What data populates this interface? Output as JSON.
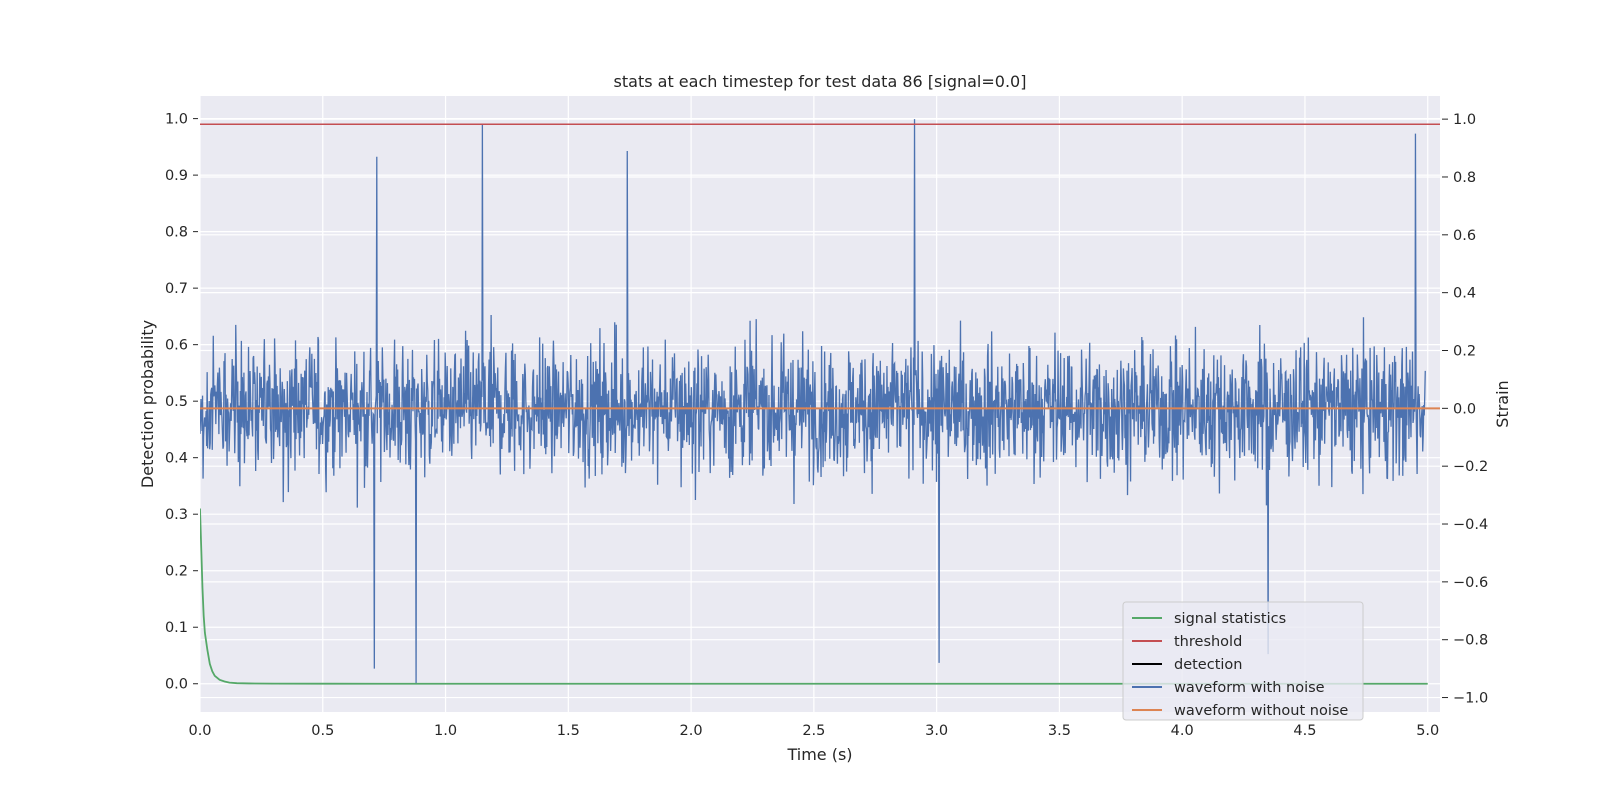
{
  "chart_data": {
    "type": "line",
    "title": "stats at each timestep for test data 86 [signal=0.0]",
    "xlabel": "Time (s)",
    "ylabel_left": "Detection probability",
    "ylabel_right": "Strain",
    "xlim": [
      0.0,
      5.05
    ],
    "ylim_left": [
      -0.05,
      1.04
    ],
    "ylim_right": [
      -1.05,
      1.08
    ],
    "x_ticks": [
      "0.0",
      "0.5",
      "1.0",
      "1.5",
      "2.0",
      "2.5",
      "3.0",
      "3.5",
      "4.0",
      "4.5",
      "5.0"
    ],
    "y_ticks_left": [
      "0.0",
      "0.1",
      "0.2",
      "0.3",
      "0.4",
      "0.5",
      "0.6",
      "0.7",
      "0.8",
      "0.9",
      "1.0"
    ],
    "y_ticks_right": [
      "−1.0",
      "−0.8",
      "−0.6",
      "−0.4",
      "−0.2",
      "0.0",
      "0.2",
      "0.4",
      "0.6",
      "0.8",
      "1.0"
    ],
    "grid": true,
    "legend_position": "lower right",
    "threshold": 0.99,
    "series": [
      {
        "name": "signal statistics",
        "axis": "left",
        "color": "#55a868",
        "x": [
          0.0,
          0.005,
          0.01,
          0.015,
          0.02,
          0.03,
          0.04,
          0.05,
          0.06,
          0.08,
          0.1,
          0.12,
          0.15,
          0.2,
          0.3,
          0.5,
          1.0,
          2.0,
          3.0,
          4.0,
          5.0
        ],
        "values": [
          0.31,
          0.24,
          0.17,
          0.12,
          0.09,
          0.06,
          0.035,
          0.022,
          0.014,
          0.007,
          0.004,
          0.002,
          0.001,
          0.0005,
          0.0002,
          0.0001,
          0.0,
          0.0,
          0.0,
          0.0,
          0.0
        ]
      },
      {
        "name": "threshold",
        "axis": "left",
        "color": "#c44e52",
        "x": [
          0.0,
          5.05
        ],
        "values": [
          0.99,
          0.99
        ]
      },
      {
        "name": "detection",
        "axis": "left",
        "color": "#000000",
        "x": [],
        "values": []
      },
      {
        "name": "waveform with noise",
        "axis": "right",
        "color": "#4c72b0",
        "x_range": [
          0.0,
          4.99
        ],
        "amplitude_range": [
          -0.95,
          1.0
        ],
        "notable_peaks": [
          {
            "x": 0.72,
            "y": 0.87
          },
          {
            "x": 1.15,
            "y": 0.98
          },
          {
            "x": 1.74,
            "y": 0.89
          },
          {
            "x": 2.91,
            "y": 1.0
          },
          {
            "x": 4.95,
            "y": 0.95
          }
        ],
        "notable_troughs": [
          {
            "x": 0.71,
            "y": -0.9
          },
          {
            "x": 0.88,
            "y": -0.95
          },
          {
            "x": 3.01,
            "y": -0.88
          },
          {
            "x": 4.35,
            "y": -0.85
          }
        ]
      },
      {
        "name": "waveform without noise",
        "axis": "right",
        "color": "#dd8452",
        "x": [
          0.0,
          5.05
        ],
        "values": [
          0.0,
          0.0
        ]
      }
    ]
  }
}
